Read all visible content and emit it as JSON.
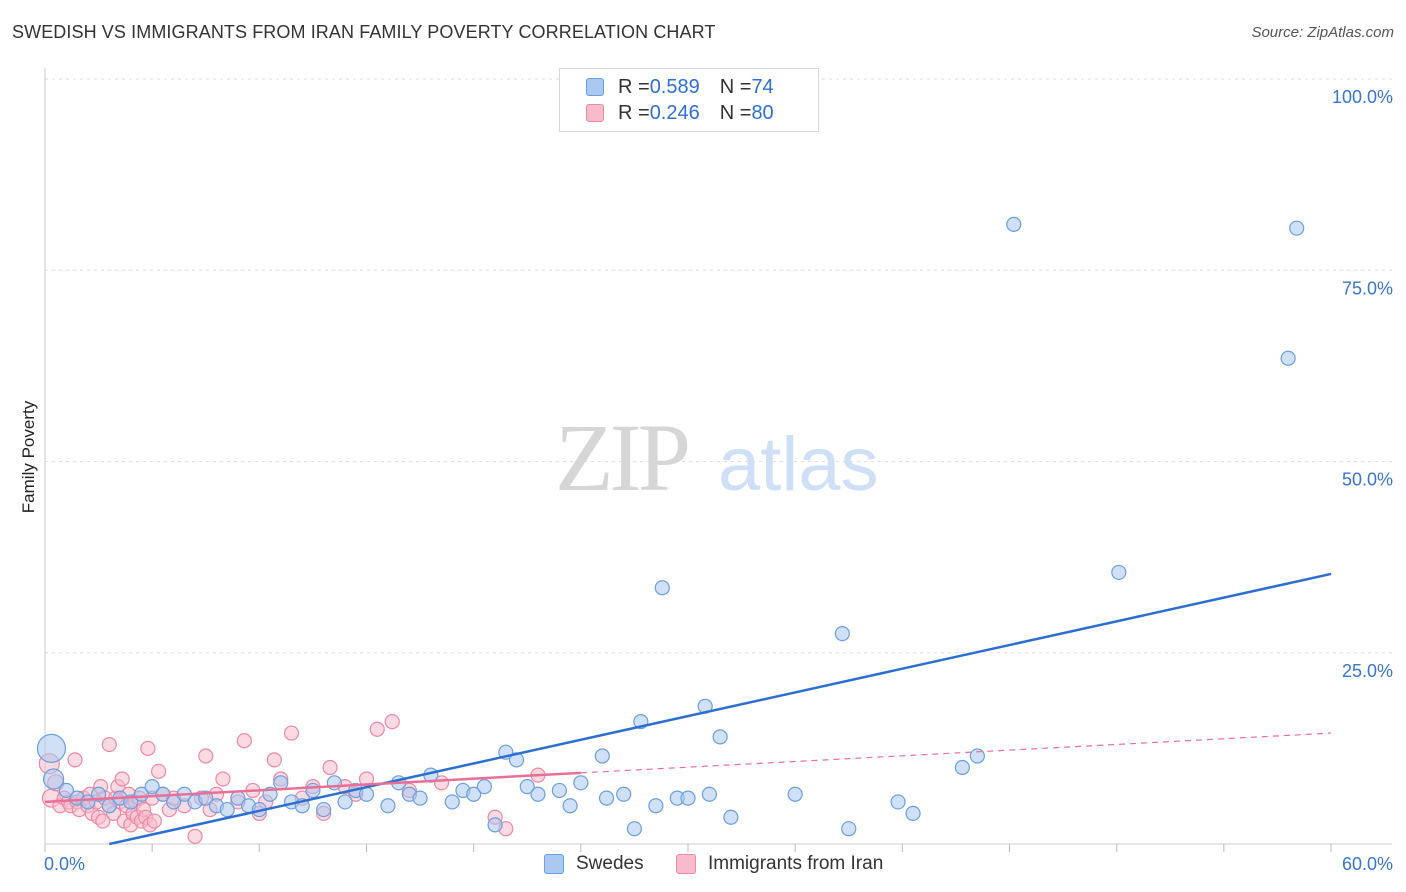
{
  "title": "SWEDISH VS IMMIGRANTS FROM IRAN FAMILY POVERTY CORRELATION CHART",
  "source": "Source: ZipAtlas.com",
  "watermark": {
    "zip": "ZIP",
    "atlas": "atlas"
  },
  "colors": {
    "blue_fill": "#aac8f0",
    "blue_stroke": "#6d9fdc",
    "blue_line": "#2d6fd1",
    "pink_fill": "#f7bccc",
    "pink_stroke": "#ea8aa6",
    "pink_line": "#e96f96",
    "grid": "#dddddd",
    "tick_text": "#3b74c9"
  },
  "legend": {
    "rows": [
      {
        "r_label": "R = ",
        "r_value": "0.589",
        "n_label": "N = ",
        "n_value": "74"
      },
      {
        "r_label": "R = ",
        "r_value": "0.246",
        "n_label": "N = ",
        "n_value": "80"
      }
    ]
  },
  "chart_data": {
    "type": "scatter",
    "title": "SWEDISH VS IMMIGRANTS FROM IRAN FAMILY POVERTY CORRELATION CHART",
    "xlabel": "",
    "ylabel": "Family Poverty",
    "xlim": [
      0,
      60
    ],
    "ylim": [
      0,
      100
    ],
    "x_tick_labels": [
      "0.0%",
      "60.0%"
    ],
    "y_ticks": [
      25,
      50,
      75,
      100
    ],
    "y_tick_labels": [
      "25.0%",
      "50.0%",
      "75.0%",
      "100.0%"
    ],
    "series": [
      {
        "name": "Swedes",
        "r": 0.589,
        "n": 74,
        "trend": {
          "x0": 3.0,
          "y0": 0.0,
          "x1": 60.0,
          "y1": 35.3
        },
        "points": [
          [
            0.3,
            12.5,
            14
          ],
          [
            0.4,
            8.5,
            10
          ],
          [
            1.0,
            7.0,
            7
          ],
          [
            1.5,
            6.0,
            7
          ],
          [
            2.0,
            5.5,
            7
          ],
          [
            2.5,
            6.5,
            7
          ],
          [
            3.0,
            5.0,
            7
          ],
          [
            3.5,
            6.0,
            7
          ],
          [
            4.0,
            5.5,
            7
          ],
          [
            4.5,
            6.5,
            7
          ],
          [
            5.0,
            7.5,
            7
          ],
          [
            5.5,
            6.5,
            7
          ],
          [
            6.0,
            5.5,
            7
          ],
          [
            6.5,
            6.5,
            7
          ],
          [
            7.0,
            5.5,
            7
          ],
          [
            7.5,
            6.0,
            7
          ],
          [
            8.0,
            5.0,
            7
          ],
          [
            8.5,
            4.5,
            7
          ],
          [
            9.0,
            6.0,
            7
          ],
          [
            9.5,
            5.0,
            7
          ],
          [
            10.0,
            4.5,
            7
          ],
          [
            10.5,
            6.5,
            7
          ],
          [
            11.0,
            8.0,
            7
          ],
          [
            11.5,
            5.5,
            7
          ],
          [
            12.0,
            5.0,
            7
          ],
          [
            12.5,
            7.0,
            7
          ],
          [
            13.0,
            4.5,
            7
          ],
          [
            13.5,
            8.0,
            7
          ],
          [
            14.0,
            5.5,
            7
          ],
          [
            14.5,
            7.0,
            7
          ],
          [
            15.0,
            6.5,
            7
          ],
          [
            16.0,
            5.0,
            7
          ],
          [
            16.5,
            8.0,
            7
          ],
          [
            17.0,
            6.5,
            7
          ],
          [
            17.5,
            6.0,
            7
          ],
          [
            18.0,
            9.0,
            7
          ],
          [
            19.0,
            5.5,
            7
          ],
          [
            19.5,
            7.0,
            7
          ],
          [
            20.0,
            6.5,
            7
          ],
          [
            20.5,
            7.5,
            7
          ],
          [
            21.0,
            2.5,
            7
          ],
          [
            21.5,
            12.0,
            7
          ],
          [
            22.0,
            11.0,
            7
          ],
          [
            22.5,
            7.5,
            7
          ],
          [
            23.0,
            6.5,
            7
          ],
          [
            24.0,
            7.0,
            7
          ],
          [
            24.5,
            5.0,
            7
          ],
          [
            25.0,
            8.0,
            7
          ],
          [
            26.0,
            11.5,
            7
          ],
          [
            26.2,
            6.0,
            7
          ],
          [
            27.0,
            6.5,
            7
          ],
          [
            27.5,
            2.0,
            7
          ],
          [
            27.8,
            16.0,
            7
          ],
          [
            28.5,
            5.0,
            7
          ],
          [
            28.8,
            33.5,
            7
          ],
          [
            29.5,
            6.0,
            7
          ],
          [
            30.0,
            6.0,
            7
          ],
          [
            30.8,
            18.0,
            7
          ],
          [
            31.0,
            6.5,
            7
          ],
          [
            31.5,
            14.0,
            7
          ],
          [
            32.0,
            3.5,
            7
          ],
          [
            35.0,
            6.5,
            7
          ],
          [
            37.2,
            27.5,
            7
          ],
          [
            37.5,
            2.0,
            7
          ],
          [
            39.8,
            5.5,
            7
          ],
          [
            40.5,
            4.0,
            7
          ],
          [
            42.8,
            10.0,
            7
          ],
          [
            43.5,
            11.5,
            7
          ],
          [
            45.2,
            81.0,
            7
          ],
          [
            50.1,
            35.5,
            7
          ],
          [
            58.0,
            63.5,
            7
          ],
          [
            58.4,
            80.5,
            7
          ]
        ]
      },
      {
        "name": "Immigrants from Iran",
        "r": 0.246,
        "n": 80,
        "trend_solid": {
          "x0": 0.0,
          "y0": 5.5,
          "x1": 25.0,
          "y1": 9.3
        },
        "trend_dashed": {
          "x0": 25.0,
          "y0": 9.3,
          "x1": 60.0,
          "y1": 14.5
        },
        "points": [
          [
            0.2,
            10.5,
            10
          ],
          [
            0.3,
            6.0,
            9
          ],
          [
            0.5,
            8.0,
            8
          ],
          [
            0.7,
            5.0,
            7
          ],
          [
            0.9,
            6.0,
            7
          ],
          [
            1.1,
            5.5,
            7
          ],
          [
            1.2,
            5.0,
            7
          ],
          [
            1.4,
            11.0,
            7
          ],
          [
            1.5,
            5.5,
            7
          ],
          [
            1.6,
            4.5,
            7
          ],
          [
            1.8,
            6.0,
            7
          ],
          [
            2.0,
            5.0,
            7
          ],
          [
            2.1,
            6.5,
            7
          ],
          [
            2.2,
            4.0,
            7
          ],
          [
            2.4,
            5.5,
            7
          ],
          [
            2.5,
            3.5,
            7
          ],
          [
            2.6,
            7.5,
            7
          ],
          [
            2.7,
            3.0,
            7
          ],
          [
            2.8,
            6.0,
            7
          ],
          [
            3.0,
            5.0,
            7
          ],
          [
            3.0,
            13.0,
            7
          ],
          [
            3.2,
            4.0,
            7
          ],
          [
            3.3,
            6.0,
            7
          ],
          [
            3.4,
            7.5,
            7
          ],
          [
            3.5,
            5.5,
            7
          ],
          [
            3.6,
            8.5,
            7
          ],
          [
            3.7,
            3.0,
            7
          ],
          [
            3.8,
            5.0,
            7
          ],
          [
            3.9,
            6.5,
            7
          ],
          [
            4.0,
            2.5,
            7
          ],
          [
            4.1,
            4.0,
            7
          ],
          [
            4.2,
            5.5,
            7
          ],
          [
            4.3,
            3.5,
            7
          ],
          [
            4.4,
            6.0,
            7
          ],
          [
            4.5,
            3.0,
            7
          ],
          [
            4.6,
            4.5,
            7
          ],
          [
            4.7,
            3.5,
            7
          ],
          [
            4.8,
            12.5,
            7
          ],
          [
            4.9,
            2.5,
            7
          ],
          [
            5.0,
            6.0,
            7
          ],
          [
            5.1,
            3.0,
            7
          ],
          [
            5.3,
            9.5,
            7
          ],
          [
            5.5,
            6.5,
            7
          ],
          [
            5.8,
            4.5,
            7
          ],
          [
            6.0,
            6.0,
            7
          ],
          [
            6.5,
            5.0,
            7
          ],
          [
            7.0,
            1.0,
            7
          ],
          [
            7.3,
            6.0,
            7
          ],
          [
            7.5,
            11.5,
            7
          ],
          [
            7.7,
            4.5,
            7
          ],
          [
            8.0,
            6.5,
            7
          ],
          [
            8.3,
            8.5,
            7
          ],
          [
            9.0,
            5.5,
            7
          ],
          [
            9.3,
            13.5,
            7
          ],
          [
            9.7,
            7.0,
            7
          ],
          [
            10.0,
            4.0,
            7
          ],
          [
            10.3,
            5.5,
            7
          ],
          [
            10.7,
            11.0,
            7
          ],
          [
            11.0,
            8.5,
            7
          ],
          [
            11.5,
            14.5,
            7
          ],
          [
            12.0,
            6.0,
            7
          ],
          [
            12.5,
            7.5,
            7
          ],
          [
            13.0,
            4.0,
            7
          ],
          [
            13.3,
            10.0,
            7
          ],
          [
            14.0,
            7.5,
            7
          ],
          [
            14.5,
            6.5,
            7
          ],
          [
            15.0,
            8.5,
            7
          ],
          [
            15.5,
            15.0,
            7
          ],
          [
            16.2,
            16.0,
            7
          ],
          [
            17.0,
            7.0,
            7
          ],
          [
            18.5,
            8.0,
            7
          ],
          [
            21.0,
            3.5,
            7
          ],
          [
            21.5,
            2.0,
            7
          ],
          [
            23.0,
            9.0,
            7
          ]
        ]
      }
    ]
  },
  "bottom_legend": [
    {
      "label": "Swedes"
    },
    {
      "label": "Immigrants from Iran"
    }
  ]
}
